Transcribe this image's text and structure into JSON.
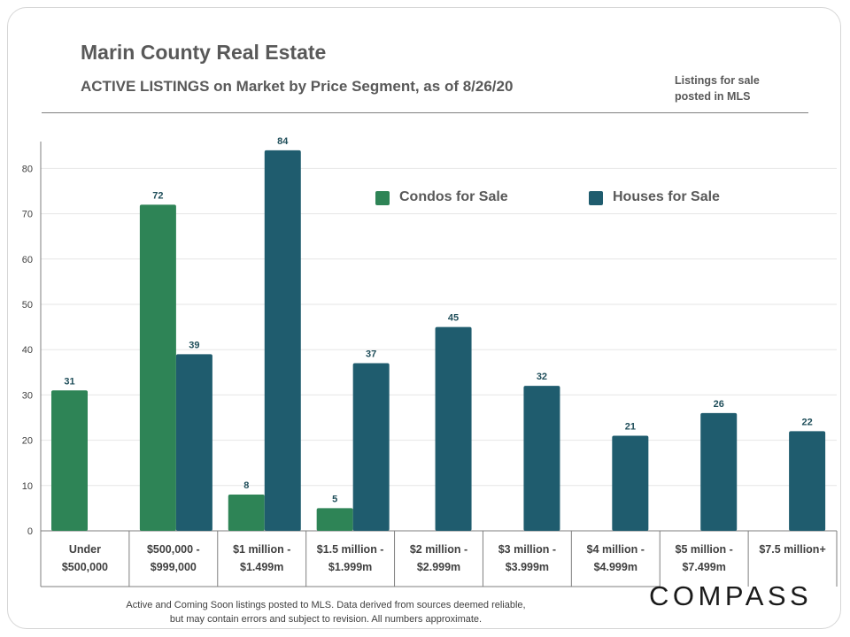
{
  "header": {
    "title": "Marin County Real Estate",
    "subtitle": "ACTIVE LISTINGS on Market  by Price Segment, as of 8/26/20",
    "note_line1": "Listings for sale",
    "note_line2": "posted in MLS"
  },
  "footer": {
    "line1": "Active and Coming Soon listings posted to MLS. Data derived from sources deemed reliable,",
    "line2": "but may contain errors and subject to revision. All numbers approximate.",
    "brand": "COMPASS"
  },
  "colors": {
    "condos": "#2e8456",
    "houses": "#1f5c6e"
  },
  "chart_data": {
    "type": "bar",
    "categories": [
      [
        "Under",
        "$500,000"
      ],
      [
        "$500,000 -",
        "$999,000"
      ],
      [
        "$1 million -",
        "$1.499m"
      ],
      [
        "$1.5 million -",
        "$1.999m"
      ],
      [
        "$2 million -",
        "$2.999m"
      ],
      [
        "$3 million -",
        "$3.999m"
      ],
      [
        "$4 million -",
        "$4.999m"
      ],
      [
        "$5 million -",
        "$7.499m"
      ],
      [
        "$7.5 million+"
      ]
    ],
    "series": [
      {
        "name": "Condos for Sale",
        "values": [
          31,
          72,
          8,
          5,
          null,
          null,
          null,
          null,
          null
        ]
      },
      {
        "name": "Houses for Sale",
        "values": [
          null,
          39,
          84,
          37,
          45,
          32,
          21,
          26,
          22
        ]
      }
    ],
    "ylim": [
      0,
      85
    ],
    "yticks": [
      0,
      10,
      20,
      30,
      40,
      50,
      60,
      70,
      80
    ],
    "grid": true,
    "legend": "top-center"
  }
}
